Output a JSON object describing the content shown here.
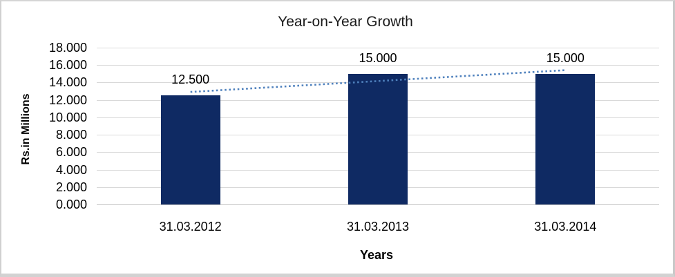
{
  "chart_data": {
    "type": "bar",
    "title": "Year-on-Year Growth",
    "xlabel": "Years",
    "ylabel": "Rs.in Millions",
    "categories": [
      "31.03.2012",
      "31.03.2013",
      "31.03.2014"
    ],
    "values": [
      12.5,
      15.0,
      15.0
    ],
    "value_labels": [
      "12.500",
      "15.000",
      "15.000"
    ],
    "y_ticks": [
      "0.000",
      "2.000",
      "4.000",
      "6.000",
      "8.000",
      "10.000",
      "12.000",
      "14.000",
      "16.000",
      "18.000"
    ],
    "ylim": [
      0,
      18
    ],
    "grid": true,
    "legend": "none",
    "trendline": {
      "style": "dotted",
      "fit": "linear"
    },
    "colors": {
      "bar": "#0F2A63",
      "trendline": "#4F81BD",
      "gridline": "#D9D9D9",
      "axis_line": "#BFBFBF",
      "text": "#000000",
      "frame_border": "#D2D2D2",
      "background": "#FFFFFF"
    }
  }
}
